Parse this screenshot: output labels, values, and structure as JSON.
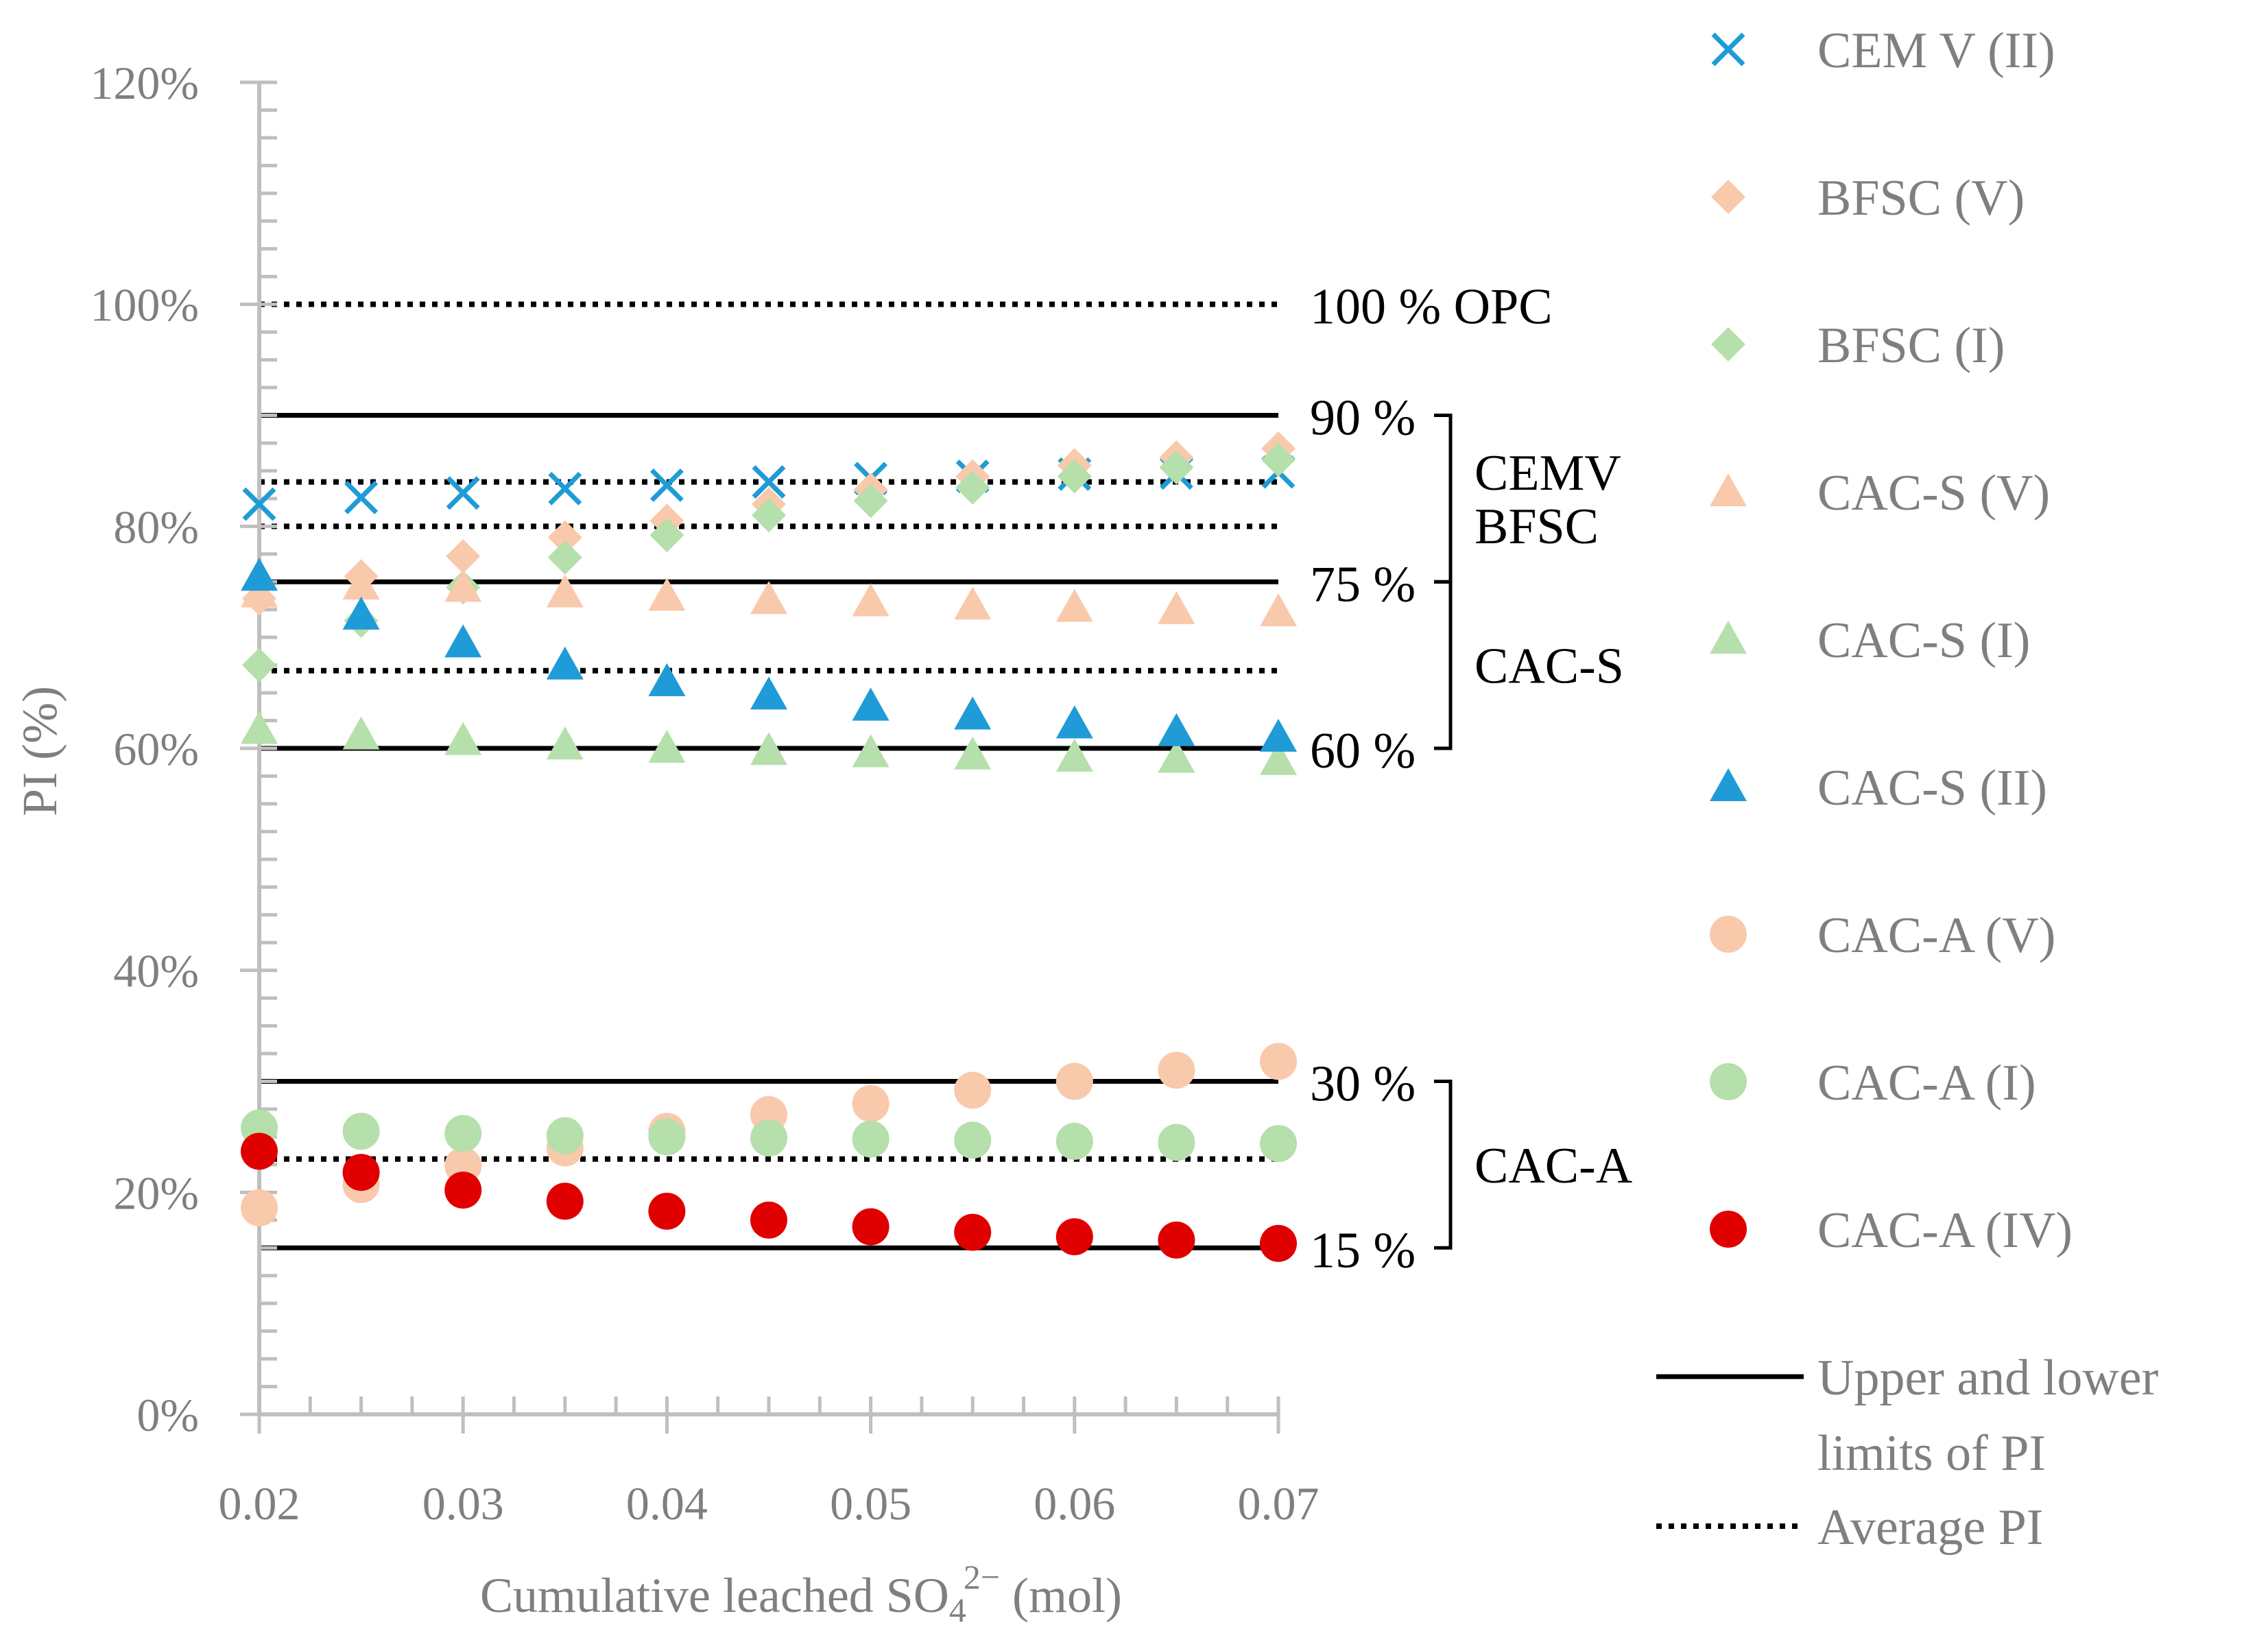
{
  "chart_data": {
    "type": "scatter",
    "title": "",
    "xlabel_main": "Cumulative leached SO",
    "xlabel_sub": "4",
    "xlabel_sup": "2−",
    "xlabel_end": " (mol)",
    "ylabel": "PI (%)",
    "xlim": [
      0.02,
      0.07
    ],
    "ylim": [
      0,
      1.2
    ],
    "x_ticks": [
      0.02,
      0.03,
      0.04,
      0.05,
      0.06,
      0.07
    ],
    "x_tick_labels": [
      "0.02",
      "0.03",
      "0.04",
      "0.05",
      "0.06",
      "0.07"
    ],
    "y_ticks": [
      0,
      0.2,
      0.4,
      0.6,
      0.8,
      1.0,
      1.2
    ],
    "y_tick_labels": [
      "0%",
      "20%",
      "40%",
      "60%",
      "80%",
      "100%",
      "120%"
    ],
    "x": [
      0.02,
      0.025,
      0.03,
      0.035,
      0.04,
      0.045,
      0.05,
      0.055,
      0.06,
      0.065,
      0.07
    ],
    "series": [
      {
        "name": "CEM V (II)",
        "marker": "x",
        "color": "#1f9bd7",
        "values": [
          0.82,
          0.826,
          0.83,
          0.834,
          0.837,
          0.84,
          0.843,
          0.845,
          0.847,
          0.848,
          0.849
        ]
      },
      {
        "name": "BFSC (V)",
        "marker": "diamond",
        "color": "#f9c9ab",
        "values": [
          0.735,
          0.755,
          0.773,
          0.79,
          0.805,
          0.82,
          0.833,
          0.845,
          0.855,
          0.862,
          0.87
        ]
      },
      {
        "name": "BFSC (I)",
        "marker": "diamond",
        "color": "#b5dfab",
        "values": [
          0.675,
          0.715,
          0.745,
          0.772,
          0.792,
          0.81,
          0.823,
          0.835,
          0.845,
          0.853,
          0.86
        ]
      },
      {
        "name": "CAC-S (V)",
        "marker": "triangle",
        "color": "#f9c9ab",
        "values": [
          0.74,
          0.747,
          0.745,
          0.74,
          0.737,
          0.734,
          0.732,
          0.729,
          0.727,
          0.725,
          0.723
        ]
      },
      {
        "name": "CAC-S (I)",
        "marker": "triangle",
        "color": "#b5dfab",
        "values": [
          0.617,
          0.612,
          0.607,
          0.603,
          0.6,
          0.598,
          0.596,
          0.594,
          0.592,
          0.591,
          0.589
        ]
      },
      {
        "name": "CAC-S (II)",
        "marker": "triangle",
        "color": "#1f9bd7",
        "values": [
          0.755,
          0.72,
          0.695,
          0.675,
          0.66,
          0.648,
          0.638,
          0.63,
          0.622,
          0.615,
          0.61
        ]
      },
      {
        "name": "CAC-A (V)",
        "marker": "circle",
        "color": "#f9c9ab",
        "values": [
          0.186,
          0.207,
          0.224,
          0.24,
          0.255,
          0.27,
          0.28,
          0.292,
          0.3,
          0.31,
          0.318
        ]
      },
      {
        "name": "CAC-A (I)",
        "marker": "circle",
        "color": "#b5dfab",
        "values": [
          0.258,
          0.255,
          0.253,
          0.251,
          0.25,
          0.249,
          0.248,
          0.247,
          0.246,
          0.245,
          0.244
        ]
      },
      {
        "name": "CAC-A (IV)",
        "marker": "circle",
        "color": "#e00000",
        "values": [
          0.237,
          0.218,
          0.202,
          0.192,
          0.183,
          0.175,
          0.169,
          0.164,
          0.16,
          0.157,
          0.154
        ]
      }
    ],
    "reference_lines": [
      {
        "kind": "limit",
        "value": 0.9,
        "label": "90 %"
      },
      {
        "kind": "limit",
        "value": 0.75,
        "label": "75 %"
      },
      {
        "kind": "limit",
        "value": 0.6,
        "label": "60 %"
      },
      {
        "kind": "limit",
        "value": 0.3,
        "label": "30 %"
      },
      {
        "kind": "limit",
        "value": 0.15,
        "label": "15 %"
      },
      {
        "kind": "average",
        "value": 1.0,
        "label": "100 % OPC"
      },
      {
        "kind": "average",
        "value": 0.84,
        "label": ""
      },
      {
        "kind": "average",
        "value": 0.8,
        "label": ""
      },
      {
        "kind": "average",
        "value": 0.67,
        "label": ""
      },
      {
        "kind": "average",
        "value": 0.23,
        "label": ""
      }
    ],
    "groups": [
      {
        "from": 0.9,
        "to": 0.75,
        "lines": [
          "CEMV",
          "BFSC"
        ]
      },
      {
        "from": 0.75,
        "to": 0.6,
        "lines": [
          "CAC-S"
        ]
      },
      {
        "from": 0.3,
        "to": 0.15,
        "lines": [
          "CAC-A"
        ]
      }
    ],
    "legend_position": "right",
    "line_legend": [
      {
        "kind": "limit",
        "lines": [
          "Upper and lower",
          "limits of PI"
        ]
      },
      {
        "kind": "average",
        "lines": [
          "Average PI"
        ]
      }
    ]
  }
}
